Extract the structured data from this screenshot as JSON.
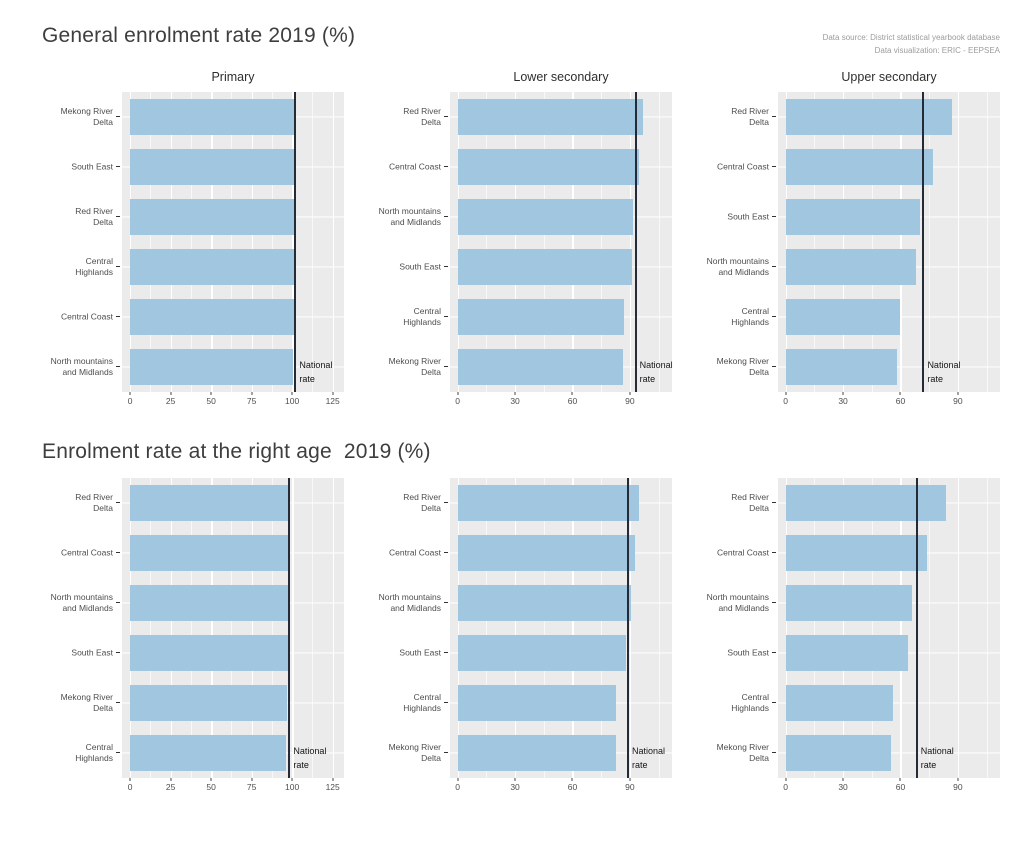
{
  "caption": {
    "line1": "Data source: District statistical yearbook database",
    "line2": "Data visualization: ERIC - EEPSEA"
  },
  "sections": [
    {
      "title": "General enrolment rate 2019 (%)"
    },
    {
      "title": "Enrolment rate at the right age  2019 (%)"
    }
  ],
  "labels": {
    "national_rate": "National\nrate"
  },
  "colors": {
    "bar": "#a0c6e0",
    "panel_bg": "#ebebeb",
    "grid": "#ffffff",
    "national_line": "#252b36",
    "title": "#3e3e3e",
    "axis_text": "#4e4e4e",
    "caption": "#9c9c9c"
  },
  "chart_data": [
    {
      "type": "bar",
      "orientation": "horizontal",
      "measure": "General enrolment rate 2019 (%)",
      "level": "Primary",
      "panel_title": "Primary",
      "categories": [
        "Mekong River\nDelta",
        "South East",
        "Red River\nDelta",
        "Central\nHighlands",
        "Central Coast",
        "North mountains\nand Midlands"
      ],
      "values": [
        101.8,
        101.6,
        101.4,
        101.2,
        101.0,
        100.8
      ],
      "national_rate": 102,
      "x_ticks": [
        0,
        25,
        50,
        75,
        100,
        125
      ],
      "x_minor": [
        12.5,
        37.5,
        62.5,
        87.5,
        112.5
      ],
      "x_domain": [
        -5,
        132
      ],
      "grid": true,
      "legend": false
    },
    {
      "type": "bar",
      "orientation": "horizontal",
      "measure": "General enrolment rate 2019 (%)",
      "level": "Lower secondary",
      "panel_title": "Lower secondary",
      "categories": [
        "Red River\nDelta",
        "Central Coast",
        "North mountains\nand Midlands",
        "South East",
        "Central\nHighlands",
        "Mekong River\nDelta"
      ],
      "values": [
        97,
        95,
        91.5,
        91,
        87,
        86.5
      ],
      "national_rate": 93,
      "x_ticks": [
        0,
        30,
        60,
        90
      ],
      "x_minor": [
        15,
        45,
        75,
        105
      ],
      "x_domain": [
        -4,
        112
      ],
      "grid": true,
      "legend": false
    },
    {
      "type": "bar",
      "orientation": "horizontal",
      "measure": "General enrolment rate 2019 (%)",
      "level": "Upper secondary",
      "panel_title": "Upper secondary",
      "categories": [
        "Red River\nDelta",
        "Central Coast",
        "South East",
        "North mountains\nand Midlands",
        "Central\nHighlands",
        "Mekong River\nDelta"
      ],
      "values": [
        87,
        77,
        70,
        68,
        60,
        58
      ],
      "national_rate": 72,
      "x_ticks": [
        0,
        30,
        60,
        90
      ],
      "x_minor": [
        15,
        45,
        75,
        105
      ],
      "x_domain": [
        -4,
        112
      ],
      "grid": true,
      "legend": false
    },
    {
      "type": "bar",
      "orientation": "horizontal",
      "measure": "Enrolment rate at the right age 2019 (%)",
      "level": "Primary",
      "panel_title": null,
      "categories": [
        "Red River\nDelta",
        "Central Coast",
        "North mountains\nand Midlands",
        "South East",
        "Mekong River\nDelta",
        "Central\nHighlands"
      ],
      "values": [
        98,
        97.7,
        97.4,
        97.2,
        96.8,
        96.5
      ],
      "national_rate": 98.3,
      "x_ticks": [
        0,
        25,
        50,
        75,
        100,
        125
      ],
      "x_minor": [
        12.5,
        37.5,
        62.5,
        87.5,
        112.5
      ],
      "x_domain": [
        -5,
        132
      ],
      "grid": true,
      "legend": false
    },
    {
      "type": "bar",
      "orientation": "horizontal",
      "measure": "Enrolment rate at the right age 2019 (%)",
      "level": "Lower secondary",
      "panel_title": null,
      "categories": [
        "Red River\nDelta",
        "Central Coast",
        "North mountains\nand Midlands",
        "South East",
        "Central\nHighlands",
        "Mekong River\nDelta"
      ],
      "values": [
        95,
        92.5,
        90.5,
        88,
        83,
        82.5
      ],
      "national_rate": 89,
      "x_ticks": [
        0,
        30,
        60,
        90
      ],
      "x_minor": [
        15,
        45,
        75,
        105
      ],
      "x_domain": [
        -4,
        112
      ],
      "grid": true,
      "legend": false
    },
    {
      "type": "bar",
      "orientation": "horizontal",
      "measure": "Enrolment rate at the right age 2019 (%)",
      "level": "Upper secondary",
      "panel_title": null,
      "categories": [
        "Red River\nDelta",
        "Central Coast",
        "North mountains\nand Midlands",
        "South East",
        "Central\nHighlands",
        "Mekong River\nDelta"
      ],
      "values": [
        84,
        74,
        66,
        64,
        56,
        55
      ],
      "national_rate": 68.5,
      "x_ticks": [
        0,
        30,
        60,
        90
      ],
      "x_minor": [
        15,
        45,
        75,
        105
      ],
      "x_domain": [
        -4,
        112
      ],
      "grid": true,
      "legend": false
    }
  ]
}
